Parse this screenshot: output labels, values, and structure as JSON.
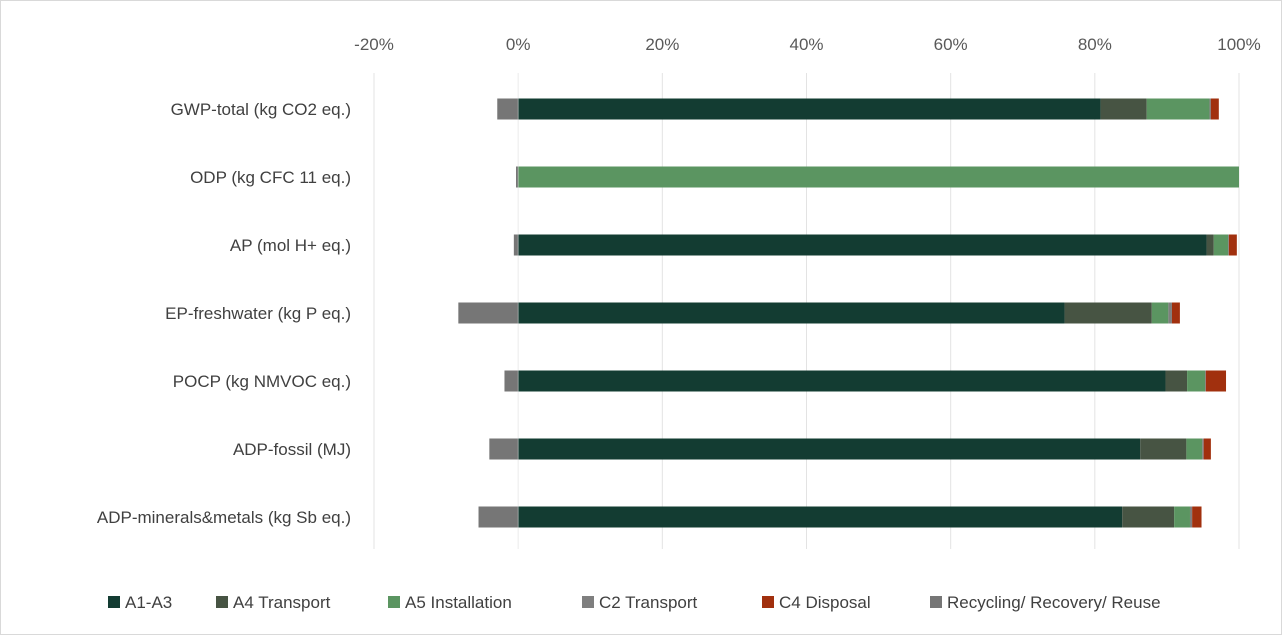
{
  "chart_data": {
    "type": "bar",
    "orientation": "horizontal",
    "stacked": true,
    "x_ticks": [
      "-20%",
      "0%",
      "20%",
      "40%",
      "60%",
      "80%",
      "100%"
    ],
    "xlim": [
      -20,
      100
    ],
    "grid": true,
    "legend_position": "bottom",
    "categories": [
      "GWP-total (kg CO2 eq.)",
      "ODP (kg CFC 11 eq.)",
      "AP (mol H+ eq.)",
      "EP-freshwater (kg P eq.)",
      "POCP (kg NMVOC eq.)",
      "ADP-fossil (MJ)",
      "ADP-minerals&metals (kg Sb eq.)"
    ],
    "series": [
      {
        "name": "A1-A3",
        "color": "#133c32",
        "values": [
          80.8,
          0,
          95.5,
          75.8,
          89.8,
          86.3,
          83.8
        ]
      },
      {
        "name": "A4 Transport",
        "color": "#475443",
        "values": [
          6.4,
          0,
          1.0,
          12.1,
          3.0,
          6.4,
          7.2
        ]
      },
      {
        "name": "A5  Installation",
        "color": "#5b9561",
        "values": [
          8.7,
          100,
          2.0,
          2.3,
          2.5,
          2.2,
          2.2
        ]
      },
      {
        "name": "C2  Transport",
        "color": "#7f7f7f",
        "values": [
          0.2,
          0,
          0.1,
          0.5,
          0.1,
          0.2,
          0.3
        ]
      },
      {
        "name": "C4  Disposal",
        "color": "#a1300e",
        "values": [
          1.1,
          0,
          1.1,
          1.1,
          2.8,
          1.0,
          1.3
        ]
      },
      {
        "name": "Recycling/ Recovery/ Reuse",
        "color": "#767676",
        "values": [
          -2.9,
          -0.3,
          -0.6,
          -8.3,
          -1.9,
          -4.0,
          -5.5
        ]
      }
    ]
  }
}
